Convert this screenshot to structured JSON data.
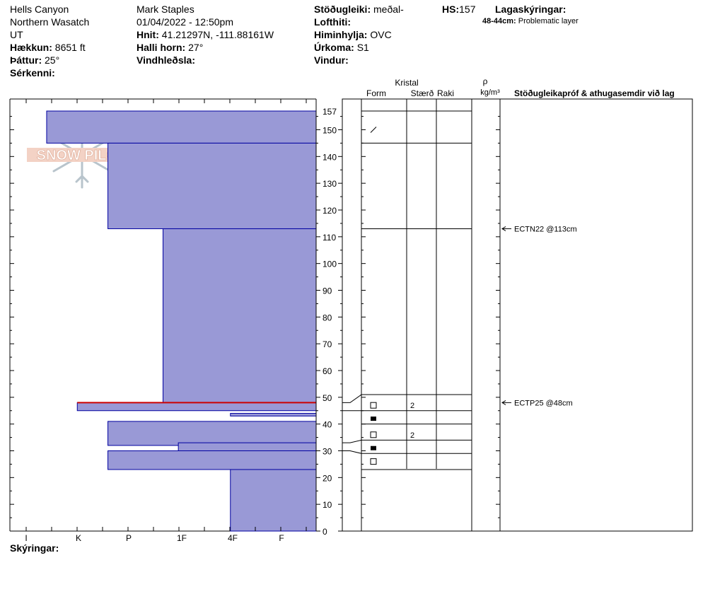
{
  "header": {
    "location": {
      "place": "Hells Canyon",
      "range": "Northern Wasatch",
      "state": "UT"
    },
    "elevation": {
      "label": "Hækkun:",
      "value": "8651 ft"
    },
    "aspect": {
      "label": "Þáttur:",
      "value": "25°"
    },
    "features": {
      "label": "Sérkenni:",
      "value": ""
    },
    "observer": "Mark Staples",
    "datetime": "01/04/2022 - 12:50pm",
    "coords": {
      "label": "Hnit:",
      "value": "41.21297N, -111.88161W"
    },
    "slope": {
      "label": "Halli horn:",
      "value": "27°"
    },
    "wind_loading": {
      "label": "Vindhleðsla:",
      "value": ""
    },
    "stability": {
      "label": "Stöðugleiki:",
      "value": "meðal-"
    },
    "air_temp": {
      "label": "Lofthiti:",
      "value": ""
    },
    "sky": {
      "label": "Himinhylja:",
      "value": "OVC"
    },
    "precip": {
      "label": "Úrkoma:",
      "value": "S1"
    },
    "wind": {
      "label": "Vindur:",
      "value": ""
    },
    "hs": {
      "label": "HS:",
      "value": "157"
    },
    "layer_notes": {
      "label": "Lagaskýringar:",
      "range": "48-44cm:",
      "text": "Problematic layer"
    }
  },
  "columns": {
    "crystal": "Kristal",
    "form": "Form",
    "size": "Stærð",
    "moisture": "Raki",
    "rho": "ρ",
    "density_unit": "kg/m³",
    "tests": "Stöðugleikapróf & athugasemdir við lag"
  },
  "footer": {
    "label": "Skýringar:"
  },
  "chart_data": {
    "type": "snow-profile",
    "hardness_categories": [
      "I",
      "K",
      "P",
      "1F",
      "4F",
      "F"
    ],
    "hardness_axis_labels": [
      "I",
      "K",
      "P",
      "1F",
      "4F",
      "F"
    ],
    "depth_ticks": [
      157,
      150,
      140,
      130,
      120,
      110,
      100,
      90,
      80,
      70,
      60,
      50,
      40,
      30,
      20,
      10,
      0
    ],
    "depth_max": 157,
    "hardness_layers": [
      {
        "top": 157,
        "bottom": 145,
        "hardness": "F"
      },
      {
        "top": 145,
        "bottom": 113,
        "hardness": "4F"
      },
      {
        "top": 113,
        "bottom": 48,
        "hardness": "1F"
      },
      {
        "top": 48,
        "bottom": 45,
        "hardness": "F+"
      },
      {
        "top": 44,
        "bottom": 43,
        "hardness": "P"
      },
      {
        "top": 41,
        "bottom": 32,
        "hardness": "4F"
      },
      {
        "top": 33,
        "bottom": 30,
        "hardness": "1F-"
      },
      {
        "top": 30,
        "bottom": 23,
        "hardness": "4F"
      },
      {
        "top": 23,
        "bottom": 0,
        "hardness": "P"
      }
    ],
    "hardness_positions": {
      "P": 0.28,
      "1F": 0.5,
      "1F-": 0.45,
      "4F": 0.68,
      "F": 0.88,
      "F+": 0.78
    },
    "problem_layer_depth": 48,
    "table_layers": [
      157,
      145,
      113,
      51,
      45,
      40,
      34,
      29,
      23
    ],
    "crystal_rows": [
      {
        "depth": 150,
        "form": "decomposing",
        "size": ""
      },
      {
        "depth": 47,
        "form": "faceted",
        "size": "2"
      },
      {
        "depth": 42,
        "form": "depth-hoar",
        "size": ""
      },
      {
        "depth": 36,
        "form": "faceted",
        "size": "2"
      },
      {
        "depth": 31,
        "form": "depth-hoar",
        "size": ""
      },
      {
        "depth": 26,
        "form": "faceted",
        "size": ""
      }
    ],
    "stability_tests": [
      {
        "depth": 113,
        "result": "ECTN22 @113cm"
      },
      {
        "depth": 48,
        "result": "ECTP25 @48cm"
      }
    ],
    "colors": {
      "bar_fill": "#9999d6",
      "bar_stroke": "#0000a0",
      "problem_line": "#cc0000"
    }
  }
}
